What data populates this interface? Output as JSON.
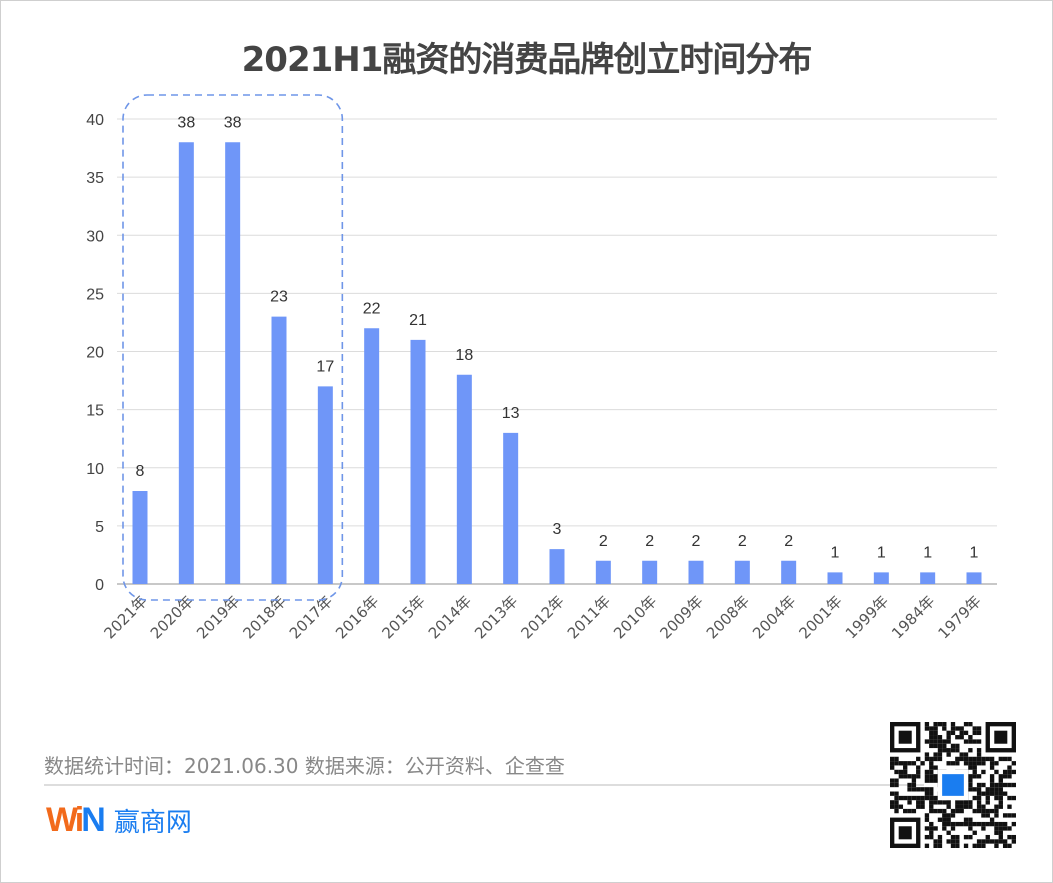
{
  "chart_data": {
    "type": "bar",
    "title": "2021H1融资的消费品牌创立时间分布",
    "categories": [
      "2021年",
      "2020年",
      "2019年",
      "2018年",
      "2017年",
      "2016年",
      "2015年",
      "2014年",
      "2013年",
      "2012年",
      "2011年",
      "2010年",
      "2009年",
      "2008年",
      "2004年",
      "2001年",
      "1999年",
      "1984年",
      "1979年"
    ],
    "values": [
      8,
      38,
      38,
      23,
      17,
      22,
      21,
      18,
      13,
      3,
      2,
      2,
      2,
      2,
      2,
      1,
      1,
      1,
      1
    ],
    "ylim": [
      0,
      40
    ],
    "yticks": [
      0,
      5,
      10,
      15,
      20,
      25,
      30,
      35,
      40
    ],
    "grid": true,
    "bar_color": "#6f96f8",
    "highlight": {
      "from": "2021年",
      "to": "2017年",
      "style": "dashed-rounded-box",
      "color": "#6f96e8"
    }
  },
  "footer": {
    "note": "数据统计时间：2021.06.30  数据来源：公开资料、企查查",
    "brand_w": "Wi",
    "brand_n": "N",
    "brand_name": "赢商网",
    "qr_icon": "qr-code-icon"
  }
}
